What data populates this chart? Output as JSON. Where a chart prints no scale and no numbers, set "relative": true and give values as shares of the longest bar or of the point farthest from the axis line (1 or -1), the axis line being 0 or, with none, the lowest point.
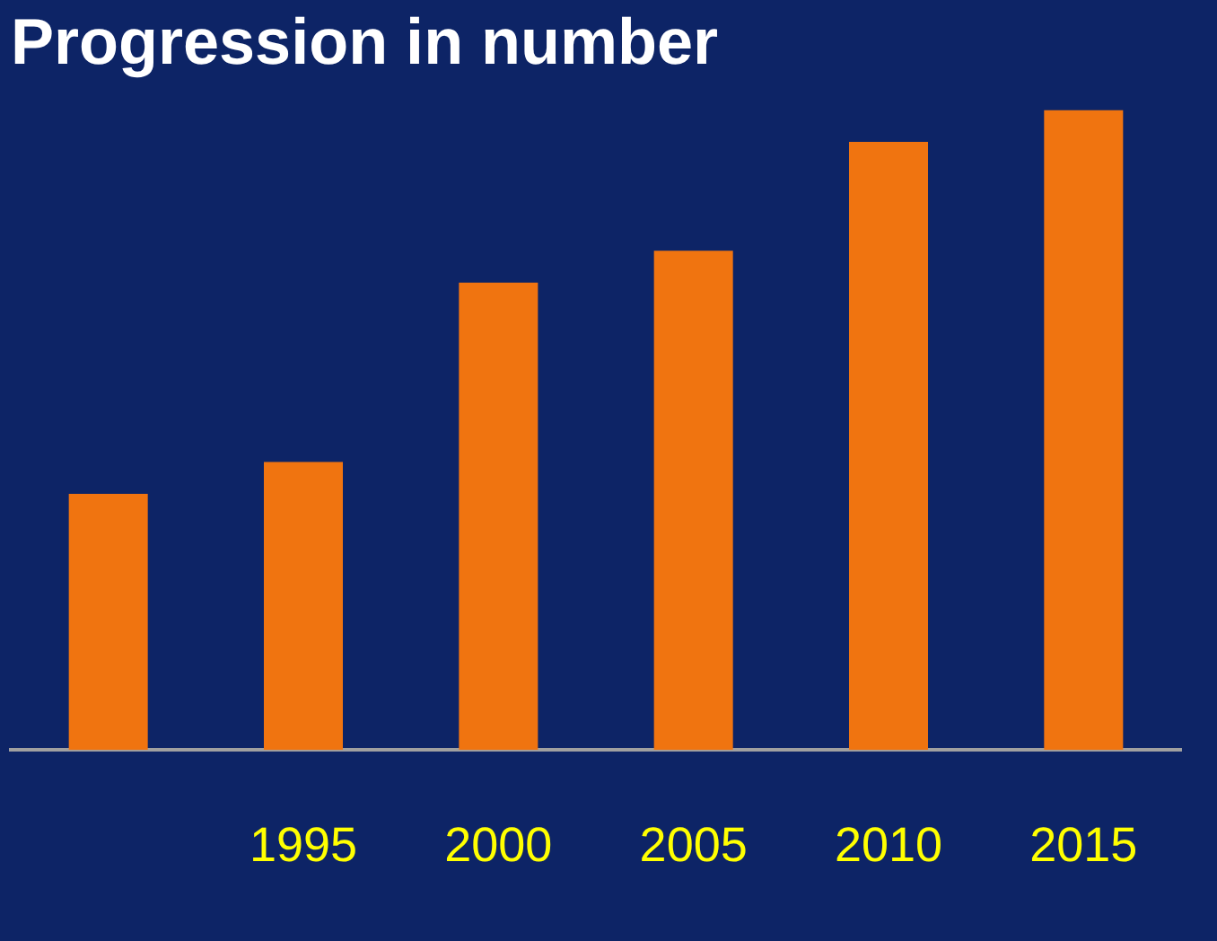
{
  "chart_data": {
    "type": "bar",
    "title": "Progression in number",
    "categories": [
      null,
      "1995",
      "2000",
      "2005",
      "2010",
      "2015"
    ],
    "values": [
      0.4,
      0.45,
      0.73,
      0.78,
      0.95,
      1
    ],
    "color": "#f07410",
    "relative": true,
    "grid": false,
    "legend": false
  }
}
